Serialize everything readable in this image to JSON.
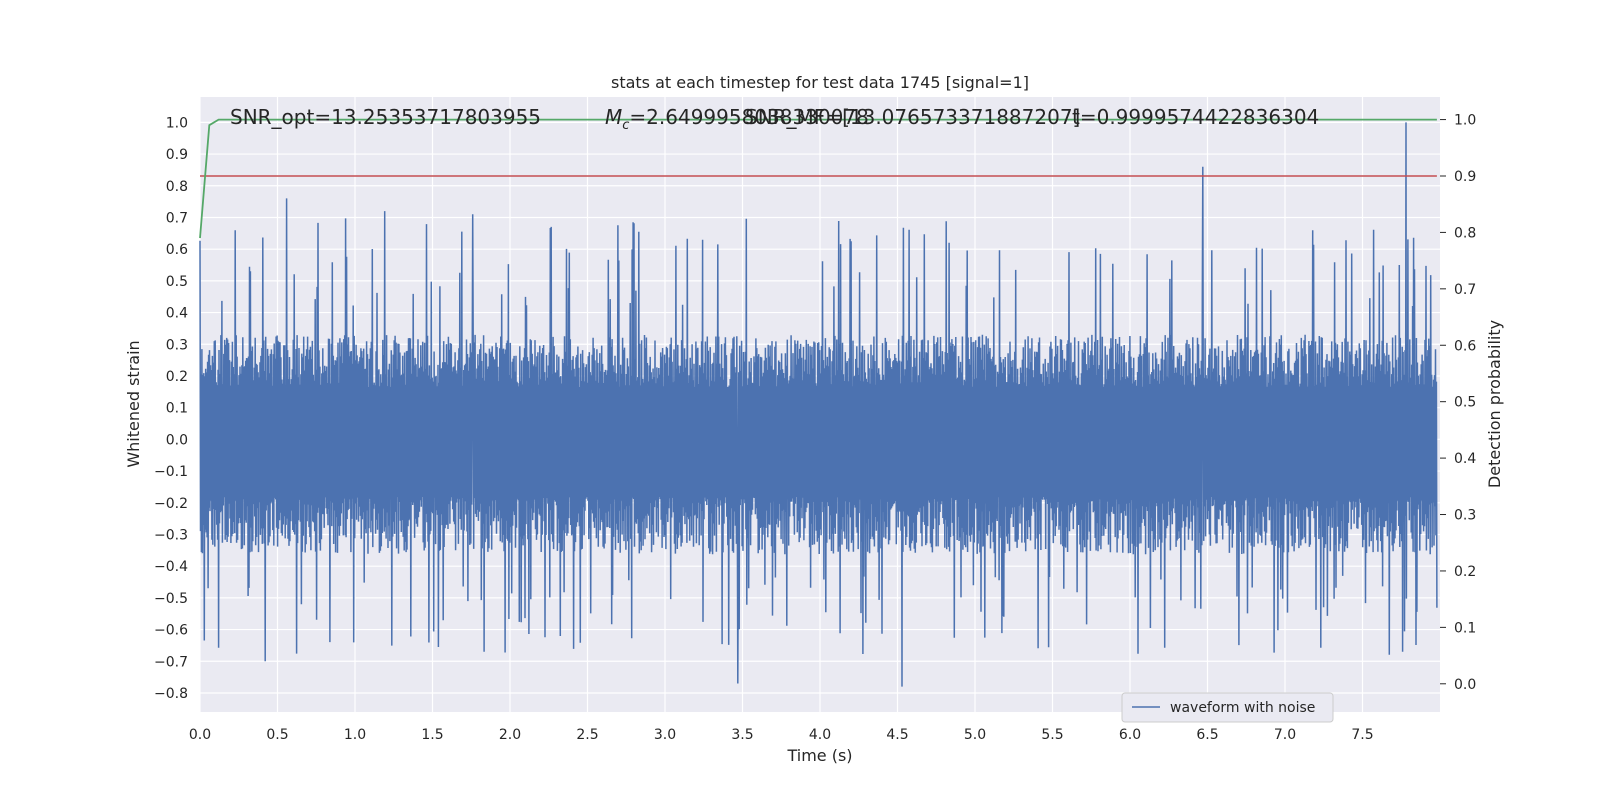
{
  "chart_data": {
    "type": "line",
    "title": "stats at each timestep for test data 1745 [signal=1]",
    "xlabel": "Time (s)",
    "ylabel": "Whitened strain",
    "y2label": "Detection probability",
    "xlim": [
      0.0,
      8.0
    ],
    "ylim": [
      -0.86,
      1.08
    ],
    "y2lim": [
      -0.05,
      1.04
    ],
    "grid": true,
    "x_ticks": [
      "0.0",
      "0.5",
      "1.0",
      "1.5",
      "2.0",
      "2.5",
      "3.0",
      "3.5",
      "4.0",
      "4.5",
      "5.0",
      "5.5",
      "6.0",
      "6.5",
      "7.0",
      "7.5"
    ],
    "y_ticks": [
      "1.0",
      "0.9",
      "0.8",
      "0.7",
      "0.6",
      "0.5",
      "0.4",
      "0.3",
      "0.2",
      "0.1",
      "0.0",
      "−0.1",
      "−0.2",
      "−0.3",
      "−0.4",
      "−0.5",
      "−0.6",
      "−0.7",
      "−0.8"
    ],
    "y2_ticks": [
      "1.0",
      "0.9",
      "0.8",
      "0.7",
      "0.6",
      "0.5",
      "0.4",
      "0.3",
      "0.2",
      "0.1",
      "0.0"
    ],
    "annotations": {
      "snr_opt": "SNR_opt=13.25353717803955",
      "mc_prefix": "M",
      "mc_sub": "c",
      "mc_value": "=2.6499958038330078",
      "snr_mf": "SNR_MF=[13.076573371887207]",
      "t_value": "t=0.9999574422836304"
    },
    "legend": {
      "label": "waveform with noise",
      "placement": "lower-right"
    },
    "series": [
      {
        "name": "waveform with noise",
        "axis": "left",
        "color": "#4c72b0",
        "noise_envelope": {
          "upper_typical": 0.3,
          "lower_typical": -0.33
        },
        "notable_peaks": [
          {
            "x": 0.56,
            "y": 0.76
          },
          {
            "x": 1.19,
            "y": 0.72
          },
          {
            "x": 1.76,
            "y": 0.71
          },
          {
            "x": 6.47,
            "y": 0.86
          },
          {
            "x": 7.78,
            "y": 1.0
          }
        ],
        "notable_troughs": [
          {
            "x": 0.42,
            "y": -0.7
          },
          {
            "x": 3.47,
            "y": -0.77
          },
          {
            "x": 4.53,
            "y": -0.78
          },
          {
            "x": 7.76,
            "y": -0.67
          }
        ]
      },
      {
        "name": "",
        "axis": "right",
        "color": "#55a868",
        "x": [
          0.0,
          0.06,
          0.12,
          0.2,
          1.0,
          2.0,
          3.0,
          4.0,
          5.0,
          6.0,
          7.0,
          7.98
        ],
        "y": [
          0.79,
          0.99,
          1.0,
          1.0,
          1.0,
          1.0,
          1.0,
          1.0,
          1.0,
          1.0,
          1.0,
          1.0
        ]
      },
      {
        "name": "",
        "axis": "right",
        "color": "#c44e52",
        "x": [
          0.0,
          7.98
        ],
        "y": [
          0.9,
          0.9
        ]
      }
    ]
  }
}
